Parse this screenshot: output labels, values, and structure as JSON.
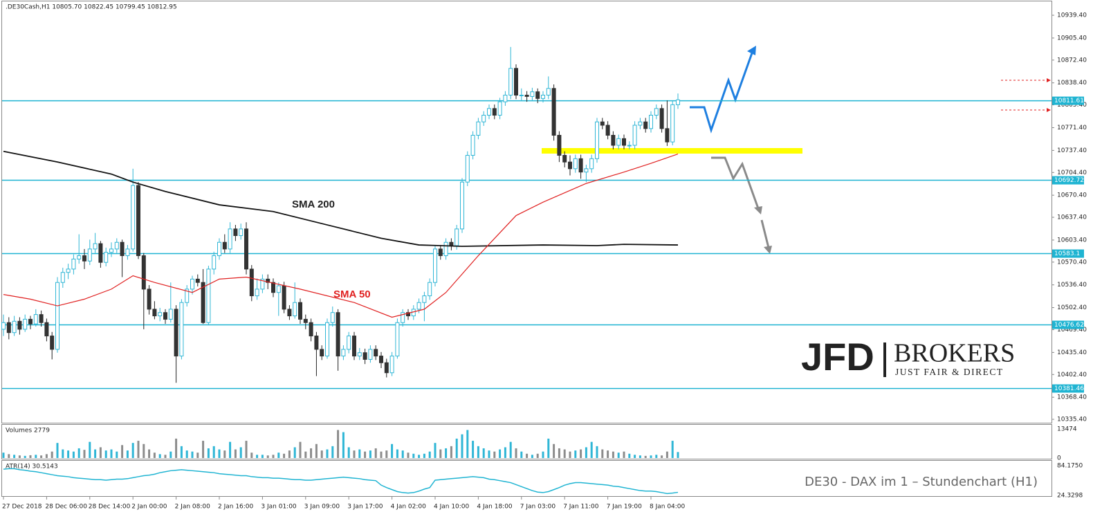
{
  "chart_data": {
    "type": "candlestick",
    "title": ".DE30Cash,H1  10805.70 10822.45 10799.45 10812.95",
    "up_color": "#2fb6d6",
    "down_color": "#333333",
    "level_color": "#1fb4d2",
    "ylim": [
      10331.3,
      10959.1
    ],
    "yticks": [
      {
        "value": 10939.4,
        "label": "10939.40"
      },
      {
        "value": 10905.4,
        "label": "10905.40"
      },
      {
        "value": 10872.4,
        "label": "10872.40"
      },
      {
        "value": 10838.4,
        "label": "10838.40"
      },
      {
        "value": 10805.4,
        "label": "10805.40"
      },
      {
        "value": 10771.4,
        "label": "10771.40"
      },
      {
        "value": 10737.4,
        "label": "10737.40"
      },
      {
        "value": 10704.4,
        "label": "10704.40"
      },
      {
        "value": 10670.4,
        "label": "10670.40"
      },
      {
        "value": 10637.4,
        "label": "10637.40"
      },
      {
        "value": 10603.4,
        "label": "10603.40"
      },
      {
        "value": 10570.4,
        "label": "10570.40"
      },
      {
        "value": 10536.4,
        "label": "10536.40"
      },
      {
        "value": 10502.4,
        "label": "10502.40"
      },
      {
        "value": 10469.4,
        "label": "10469.40"
      },
      {
        "value": 10435.4,
        "label": "10435.40"
      },
      {
        "value": 10402.4,
        "label": "10402.40"
      },
      {
        "value": 10368.4,
        "label": "10368.40"
      },
      {
        "value": 10335.4,
        "label": "10335.40"
      }
    ],
    "levels": [
      10811.61,
      10692.72,
      10583.1,
      10476.62,
      10381.46
    ],
    "categories": [
      "27 Dec 2018",
      null,
      null,
      null,
      null,
      null,
      null,
      null,
      "28 Dec 06:00",
      null,
      null,
      null,
      null,
      null,
      null,
      null,
      "28 Dec 14:00",
      null,
      null,
      null,
      null,
      null,
      null,
      null,
      "2 Jan 00:00",
      null,
      null,
      null,
      null,
      null,
      null,
      null,
      "2 Jan 08:00",
      null,
      null,
      null,
      null,
      null,
      null,
      null,
      "2 Jan 16:00",
      null,
      null,
      null,
      null,
      null,
      null,
      null,
      "3 Jan 01:00",
      null,
      null,
      null,
      null,
      null,
      null,
      null,
      "3 Jan 09:00",
      null,
      null,
      null,
      null,
      null,
      null,
      null,
      "3 Jan 17:00",
      null,
      null,
      null,
      null,
      null,
      null,
      null,
      "4 Jan 02:00",
      null,
      null,
      null,
      null,
      null,
      null,
      null,
      "4 Jan 10:00",
      null,
      null,
      null,
      null,
      null,
      null,
      null,
      "4 Jan 18:00",
      null,
      null,
      null,
      null,
      null,
      null,
      null,
      "7 Jan 03:00",
      null,
      null,
      null,
      null,
      null,
      null,
      null,
      "7 Jan 11:00",
      null,
      null,
      null,
      null,
      null,
      null,
      null,
      "7 Jan 19:00",
      null,
      null,
      null,
      null,
      null,
      null,
      null,
      "8 Jan 04:00",
      null,
      null,
      null,
      null,
      null
    ],
    "candles": [
      [
        10470,
        10492,
        10460,
        10480
      ],
      [
        10480,
        10488,
        10455,
        10465
      ],
      [
        10465,
        10490,
        10460,
        10482
      ],
      [
        10482,
        10488,
        10462,
        10470
      ],
      [
        10470,
        10492,
        10466,
        10485
      ],
      [
        10485,
        10490,
        10470,
        10478
      ],
      [
        10478,
        10500,
        10474,
        10492
      ],
      [
        10492,
        10498,
        10474,
        10480
      ],
      [
        10480,
        10486,
        10452,
        10460
      ],
      [
        10460,
        10466,
        10425,
        10440
      ],
      [
        10440,
        10548,
        10435,
        10540
      ],
      [
        10540,
        10562,
        10532,
        10555
      ],
      [
        10555,
        10568,
        10545,
        10560
      ],
      [
        10560,
        10582,
        10552,
        10575
      ],
      [
        10575,
        10612,
        10568,
        10580
      ],
      [
        10580,
        10590,
        10560,
        10572
      ],
      [
        10572,
        10604,
        10566,
        10590
      ],
      [
        10590,
        10614,
        10584,
        10598
      ],
      [
        10598,
        10602,
        10562,
        10570
      ],
      [
        10570,
        10592,
        10564,
        10585
      ],
      [
        10585,
        10600,
        10578,
        10590
      ],
      [
        10590,
        10606,
        10584,
        10600
      ],
      [
        10600,
        10604,
        10548,
        10580
      ],
      [
        10580,
        10596,
        10574,
        10590
      ],
      [
        10590,
        10710,
        10586,
        10685
      ],
      [
        10685,
        10690,
        10575,
        10580
      ],
      [
        10580,
        10584,
        10470,
        10530
      ],
      [
        10530,
        10536,
        10492,
        10500
      ],
      [
        10500,
        10512,
        10485,
        10490
      ],
      [
        10490,
        10502,
        10482,
        10495
      ],
      [
        10495,
        10500,
        10478,
        10485
      ],
      [
        10485,
        10540,
        10480,
        10500
      ],
      [
        10500,
        10506,
        10390,
        10430
      ],
      [
        10430,
        10515,
        10425,
        10510
      ],
      [
        10510,
        10536,
        10504,
        10530
      ],
      [
        10530,
        10550,
        10522,
        10545
      ],
      [
        10545,
        10552,
        10534,
        10540
      ],
      [
        10540,
        10560,
        10478,
        10480
      ],
      [
        10480,
        10565,
        10476,
        10560
      ],
      [
        10560,
        10586,
        10552,
        10580
      ],
      [
        10580,
        10606,
        10574,
        10600
      ],
      [
        10600,
        10612,
        10584,
        10590
      ],
      [
        10590,
        10630,
        10584,
        10620
      ],
      [
        10620,
        10626,
        10602,
        10610
      ],
      [
        10610,
        10628,
        10604,
        10620
      ],
      [
        10620,
        10630,
        10552,
        10560
      ],
      [
        10560,
        10566,
        10512,
        10520
      ],
      [
        10520,
        10546,
        10514,
        10530
      ],
      [
        10530,
        10552,
        10524,
        10545
      ],
      [
        10545,
        10552,
        10530,
        10540
      ],
      [
        10540,
        10546,
        10518,
        10525
      ],
      [
        10525,
        10540,
        10490,
        10535
      ],
      [
        10535,
        10541,
        10494,
        10500
      ],
      [
        10500,
        10506,
        10484,
        10490
      ],
      [
        10490,
        10540,
        10486,
        10510
      ],
      [
        10510,
        10516,
        10478,
        10485
      ],
      [
        10485,
        10492,
        10470,
        10480
      ],
      [
        10480,
        10486,
        10452,
        10460
      ],
      [
        10460,
        10466,
        10400,
        10440
      ],
      [
        10440,
        10446,
        10424,
        10430
      ],
      [
        10430,
        10486,
        10426,
        10480
      ],
      [
        10480,
        10504,
        10474,
        10495
      ],
      [
        10495,
        10500,
        10408,
        10430
      ],
      [
        10430,
        10446,
        10424,
        10440
      ],
      [
        10440,
        10466,
        10434,
        10460
      ],
      [
        10460,
        10466,
        10424,
        10430
      ],
      [
        10430,
        10442,
        10424,
        10435
      ],
      [
        10435,
        10441,
        10418,
        10425
      ],
      [
        10425,
        10446,
        10420,
        10440
      ],
      [
        10440,
        10446,
        10424,
        10430
      ],
      [
        10430,
        10436,
        10412,
        10420
      ],
      [
        10420,
        10426,
        10398,
        10405
      ],
      [
        10405,
        10436,
        10400,
        10430
      ],
      [
        10430,
        10486,
        10426,
        10480
      ],
      [
        10480,
        10500,
        10474,
        10495
      ],
      [
        10495,
        10500,
        10484,
        10490
      ],
      [
        10490,
        10506,
        10484,
        10500
      ],
      [
        10500,
        10516,
        10494,
        10510
      ],
      [
        10510,
        10526,
        10482,
        10520
      ],
      [
        10520,
        10546,
        10514,
        10540
      ],
      [
        10540,
        10596,
        10534,
        10590
      ],
      [
        10590,
        10596,
        10574,
        10580
      ],
      [
        10580,
        10606,
        10574,
        10600
      ],
      [
        10600,
        10606,
        10588,
        10595
      ],
      [
        10595,
        10626,
        10589,
        10620
      ],
      [
        10620,
        10696,
        10614,
        10690
      ],
      [
        10690,
        10736,
        10684,
        10730
      ],
      [
        10730,
        10766,
        10724,
        10760
      ],
      [
        10760,
        10786,
        10754,
        10780
      ],
      [
        10780,
        10796,
        10774,
        10790
      ],
      [
        10790,
        10806,
        10784,
        10800
      ],
      [
        10800,
        10806,
        10784,
        10790
      ],
      [
        10790,
        10816,
        10784,
        10810
      ],
      [
        10810,
        10826,
        10804,
        10820
      ],
      [
        10820,
        10892,
        10814,
        10860
      ],
      [
        10860,
        10866,
        10814,
        10820
      ],
      [
        10820,
        10830,
        10812,
        10820
      ],
      [
        10820,
        10826,
        10810,
        10818
      ],
      [
        10818,
        10831,
        10812,
        10825
      ],
      [
        10825,
        10830,
        10808,
        10815
      ],
      [
        10815,
        10826,
        10809,
        10820
      ],
      [
        10820,
        10848,
        10814,
        10830
      ],
      [
        10830,
        10836,
        10752,
        10760
      ],
      [
        10760,
        10766,
        10720,
        10730
      ],
      [
        10730,
        10736,
        10712,
        10720
      ],
      [
        10720,
        10730,
        10700,
        10710
      ],
      [
        10710,
        10731,
        10704,
        10725
      ],
      [
        10725,
        10731,
        10695,
        10705
      ],
      [
        10705,
        10716,
        10690,
        10710
      ],
      [
        10710,
        10731,
        10704,
        10725
      ],
      [
        10725,
        10786,
        10719,
        10780
      ],
      [
        10780,
        10786,
        10769,
        10775
      ],
      [
        10775,
        10781,
        10754,
        10760
      ],
      [
        10760,
        10766,
        10739,
        10745
      ],
      [
        10745,
        10761,
        10739,
        10755
      ],
      [
        10755,
        10761,
        10739,
        10745
      ],
      [
        10745,
        10751,
        10739,
        10745
      ],
      [
        10745,
        10781,
        10739,
        10775
      ],
      [
        10775,
        10786,
        10769,
        10780
      ],
      [
        10780,
        10786,
        10764,
        10770
      ],
      [
        10770,
        10796,
        10764,
        10790
      ],
      [
        10790,
        10806,
        10784,
        10800
      ],
      [
        10800,
        10806,
        10764,
        10770
      ],
      [
        10770,
        10812,
        10744,
        10750
      ],
      [
        10750,
        10812,
        10745,
        10805.7
      ],
      [
        10805.7,
        10822.45,
        10799.45,
        10812.95
      ]
    ],
    "sma": [
      {
        "name": "SMA 200",
        "color": "#111111",
        "x": [
          0,
          10,
          20,
          24,
          30,
          40,
          50,
          60,
          70,
          77,
          85,
          100,
          110,
          115,
          125
        ],
        "values": [
          10736,
          10720,
          10702,
          10690,
          10676,
          10656,
          10646,
          10626,
          10606,
          10596,
          10594,
          10596,
          10595,
          10597,
          10596
        ]
      },
      {
        "name": "SMA 50",
        "color": "#e02020",
        "x": [
          0,
          5,
          10,
          15,
          20,
          24,
          28,
          35,
          40,
          45,
          55,
          65,
          72,
          78,
          82,
          88,
          95,
          100,
          108,
          115,
          120,
          125
        ],
        "values": [
          10522,
          10515,
          10505,
          10515,
          10530,
          10550,
          10540,
          10525,
          10545,
          10548,
          10530,
          10510,
          10488,
          10500,
          10525,
          10580,
          10640,
          10660,
          10688,
          10705,
          10718,
          10732
        ]
      }
    ],
    "volume": {
      "label": "Volumes 2779",
      "ylim": [
        0,
        13474
      ],
      "yticks": [
        13474,
        0
      ],
      "values": [
        2500,
        1800,
        1500,
        1200,
        1000,
        1300,
        1500,
        1200,
        1800,
        3000,
        7000,
        4000,
        3500,
        3000,
        4500,
        3800,
        7500,
        4000,
        5000,
        3500,
        4000,
        3000,
        6000,
        3500,
        7000,
        8000,
        6500,
        4000,
        2500,
        1800,
        1500,
        3000,
        9000,
        5500,
        3500,
        3000,
        2500,
        8000,
        4500,
        5500,
        4000,
        3500,
        7500,
        4000,
        5000,
        8000,
        2500,
        1500,
        1500,
        1200,
        1500,
        2500,
        2000,
        3500,
        5000,
        7500,
        3000,
        4500,
        6500,
        3500,
        4000,
        5500,
        13000,
        12000,
        5000,
        3500,
        4000,
        3000,
        3500,
        4500,
        3000,
        3500,
        6500,
        4000,
        3500,
        2500,
        2000,
        1500,
        2000,
        3000,
        7000,
        4000,
        4500,
        5500,
        9000,
        11000,
        13000,
        8000,
        5500,
        4500,
        3500,
        3000,
        4000,
        5000,
        7500,
        4500,
        3000,
        2000,
        1500,
        2000,
        3000,
        9000,
        6500,
        4500,
        4000,
        3000,
        3500,
        4000,
        5000,
        7500,
        5500,
        4000,
        3500,
        3000,
        2500,
        3000,
        2000,
        1500,
        1200,
        1000,
        1200,
        1500,
        1200,
        3000,
        8000,
        2779
      ]
    },
    "atr": {
      "label": "ATR(14) 30.5143",
      "color": "#1fb4d2",
      "ylim": [
        24.3298,
        84.175
      ],
      "yticks": [
        {
          "value": 84.175,
          "label": "84.1750"
        },
        {
          "value": 24.3298,
          "label": "24.3298"
        }
      ],
      "values": [
        77,
        78,
        78,
        76,
        75,
        73,
        72,
        70,
        68,
        66,
        64,
        63,
        62,
        60,
        59,
        58,
        57,
        56,
        56,
        55,
        56,
        57,
        57,
        58,
        60,
        62,
        64,
        65,
        67,
        70,
        72,
        74,
        75,
        76,
        75,
        74,
        73,
        72,
        71,
        70,
        68,
        67,
        66,
        65,
        64,
        64,
        62,
        61,
        60,
        60,
        59,
        59,
        58,
        57,
        56,
        56,
        55,
        55,
        56,
        57,
        58,
        59,
        60,
        61,
        60,
        59,
        58,
        56,
        55,
        54,
        45,
        40,
        36,
        32,
        30,
        29,
        30,
        33,
        37,
        40,
        55,
        56,
        57,
        58,
        59,
        60,
        61,
        62,
        61,
        60,
        57,
        56,
        54,
        52,
        50,
        46,
        42,
        38,
        34,
        31,
        30,
        32,
        36,
        40,
        45,
        48,
        50,
        50,
        49,
        48,
        47,
        46,
        45,
        43,
        42,
        40,
        38,
        36,
        34,
        33,
        33,
        32,
        30,
        28,
        29,
        30.5143
      ]
    },
    "annotations": {
      "sma200": "SMA 200",
      "sma50": "SMA 50",
      "caption": "DE30 - DAX im 1 – Stundenchart (H1)"
    },
    "logo": {
      "brand": "JFD",
      "name": "BROKERS",
      "tagline": "JUST FAIR & DIRECT"
    }
  }
}
